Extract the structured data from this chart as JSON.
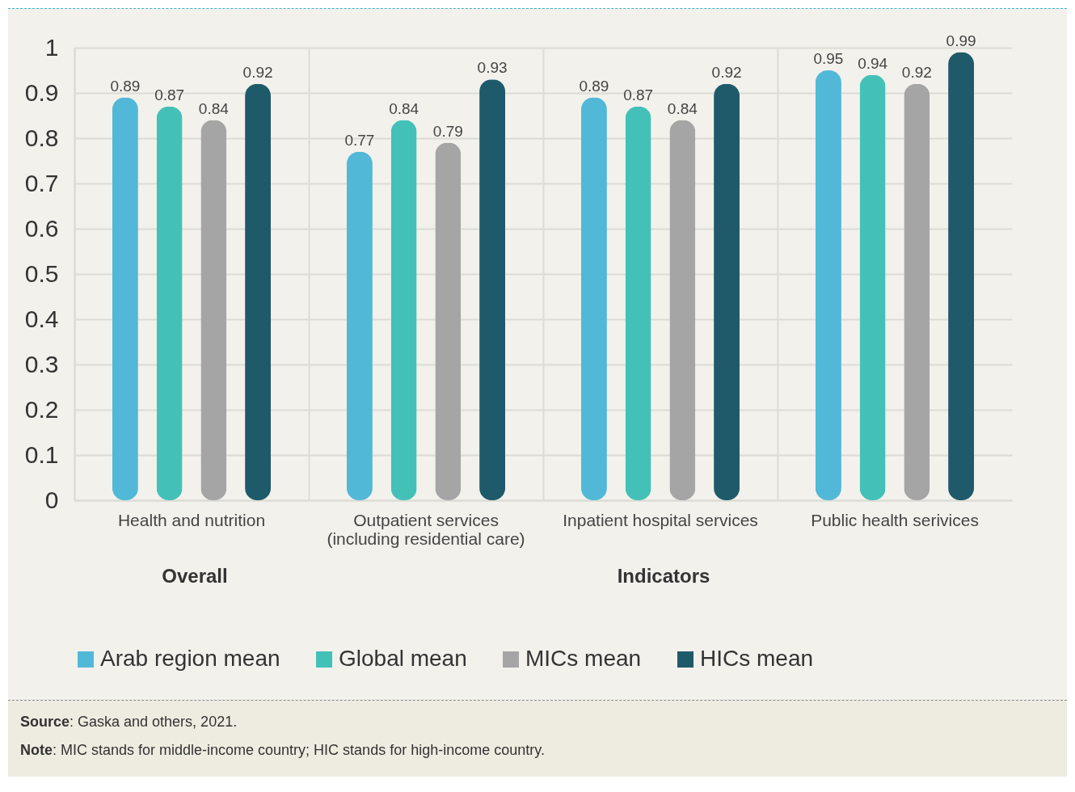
{
  "chart_data": {
    "type": "bar",
    "categories": [
      "Health and nutrition",
      "Outpatient services (including residential care)",
      "Inpatient hospital services",
      "Public health serivices"
    ],
    "series": [
      {
        "name": "Arab region mean",
        "color": "#52b8d8",
        "values": [
          0.89,
          0.77,
          0.89,
          0.95
        ]
      },
      {
        "name": "Global mean",
        "color": "#43c1b8",
        "values": [
          0.87,
          0.84,
          0.87,
          0.94
        ]
      },
      {
        "name": "MICs mean",
        "color": "#a5a5a5",
        "values": [
          0.84,
          0.79,
          0.84,
          0.92
        ]
      },
      {
        "name": "HICs mean",
        "color": "#1f5a6b",
        "values": [
          0.92,
          0.93,
          0.92,
          0.99
        ]
      }
    ],
    "ylim": [
      0,
      1
    ],
    "yticks": [
      0,
      0.1,
      0.2,
      0.3,
      0.4,
      0.5,
      0.6,
      0.7,
      0.8,
      0.9,
      1
    ],
    "grid": true,
    "legend": "bottom",
    "data_labels": true,
    "annotations": [
      "Overall",
      "Indicators",
      "Source: Gaska and others, 2021.",
      "Note: MIC stands for middle-income country; HIC stands for high-income country."
    ]
  }
}
